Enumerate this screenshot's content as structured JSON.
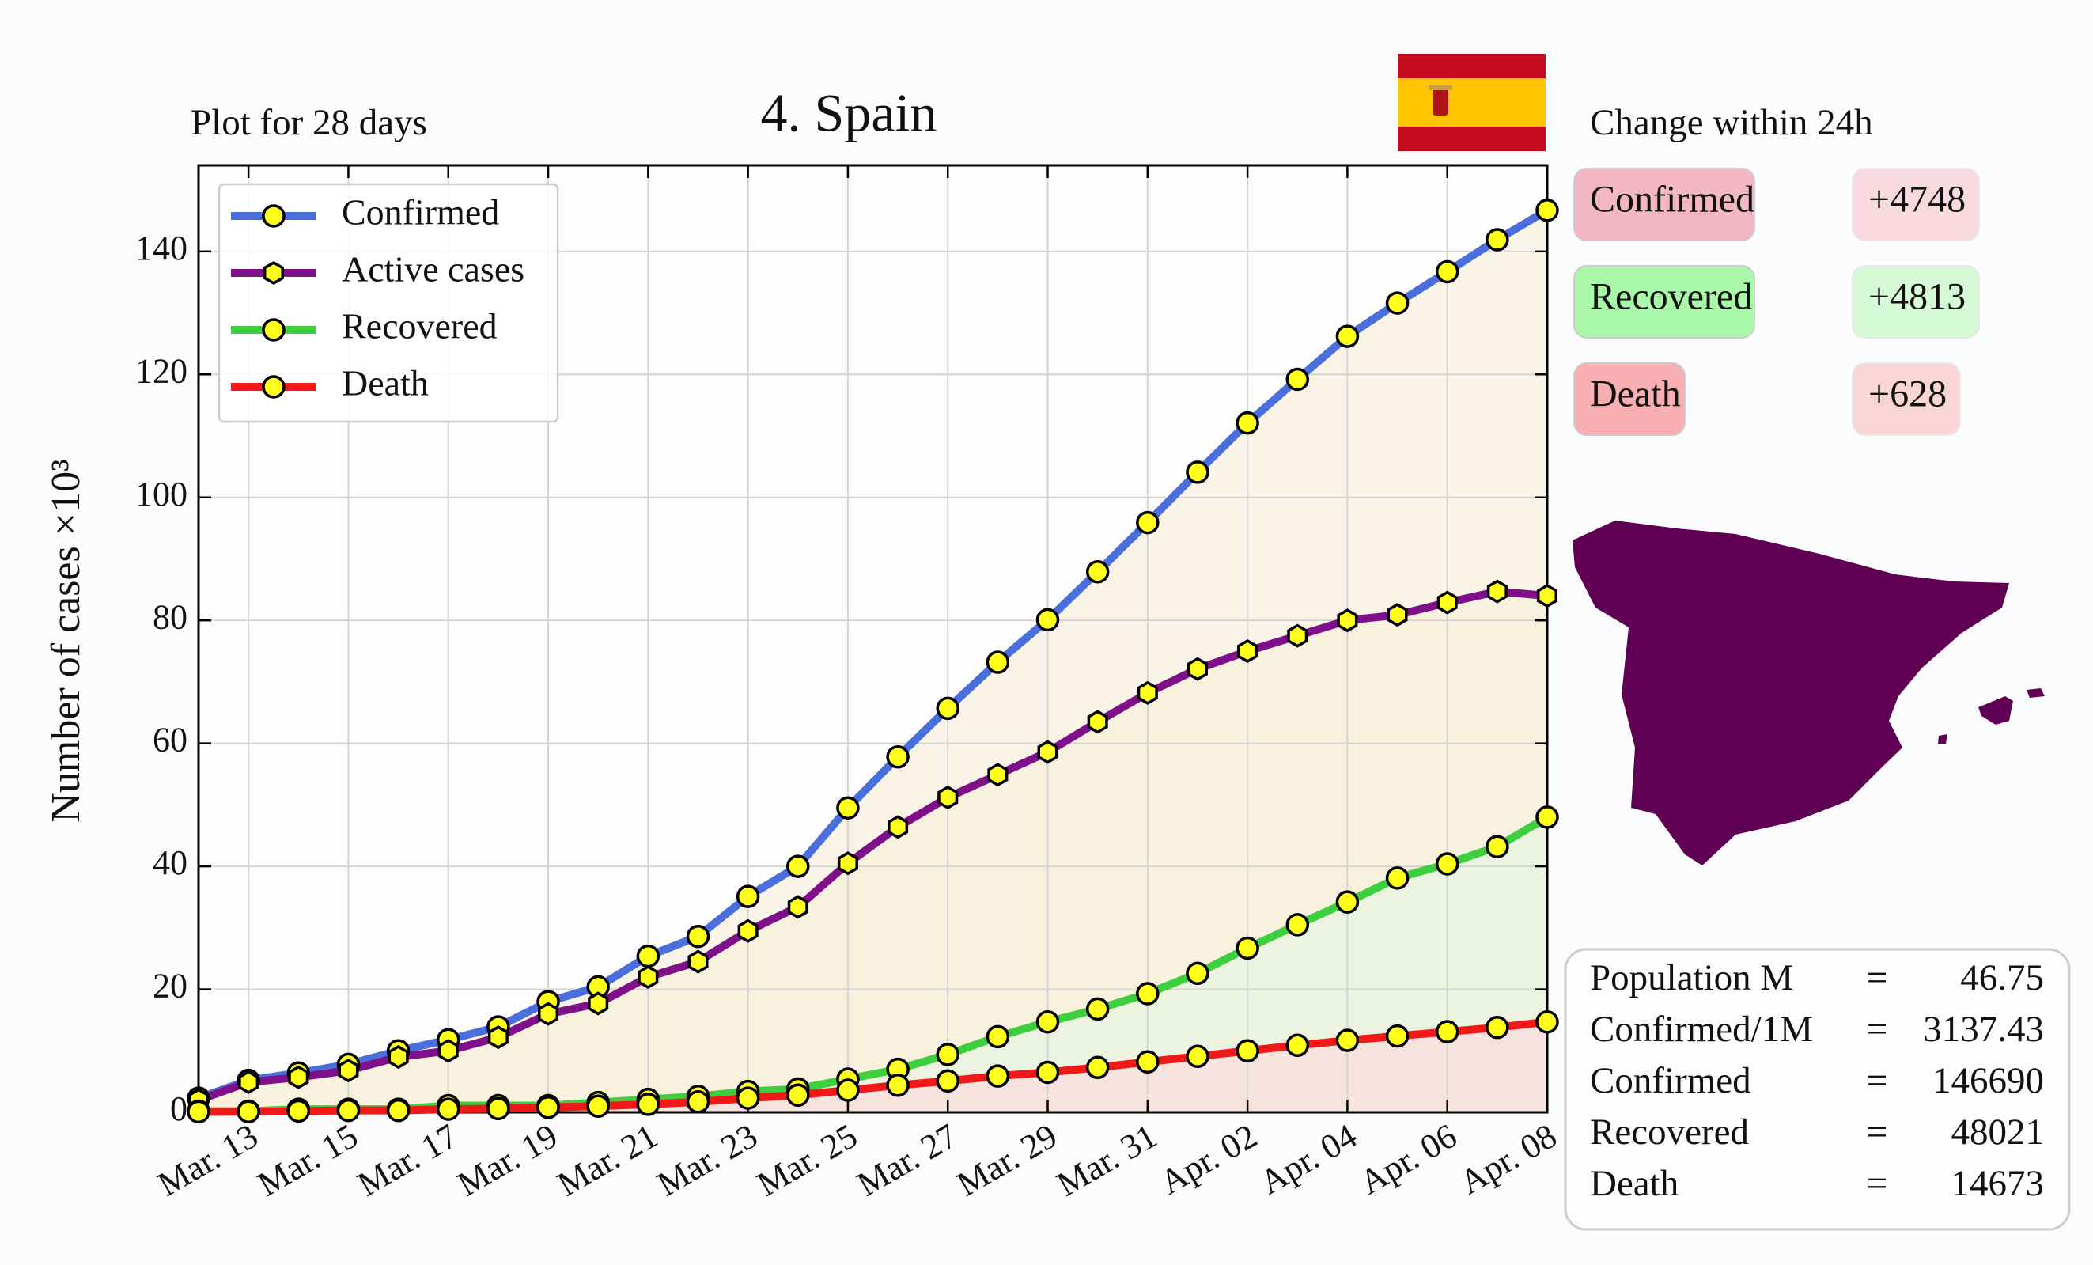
{
  "chart_data": {
    "type": "line",
    "title": "4. Spain",
    "subtitle": "Plot for 28 days",
    "y_label": "Number of cases ×10³",
    "categories": [
      null,
      "Mar. 13",
      null,
      "Mar. 15",
      null,
      "Mar. 17",
      null,
      "Mar. 19",
      null,
      "Mar. 21",
      null,
      "Mar. 23",
      null,
      "Mar. 25",
      null,
      "Mar. 27",
      null,
      "Mar. 29",
      null,
      "Mar. 31",
      null,
      "Apr. 02",
      null,
      "Apr. 04",
      null,
      "Apr. 06",
      null,
      "Apr. 08"
    ],
    "ylim": [
      0,
      154
    ],
    "yticks": [
      0,
      20,
      40,
      60,
      80,
      100,
      120,
      140
    ],
    "grid": true,
    "legend": "upper left",
    "series": [
      {
        "name": "Confirmed",
        "color": "#4a6fdc",
        "area_color": "#f7eed8",
        "marker": "circle",
        "values": [
          2.3,
          5.2,
          6.4,
          7.8,
          10.0,
          11.8,
          13.9,
          18.0,
          20.4,
          25.4,
          28.6,
          35.1,
          40.0,
          49.5,
          57.8,
          65.7,
          73.2,
          80.1,
          87.9,
          95.9,
          104.1,
          112.1,
          119.2,
          126.2,
          131.6,
          136.7,
          141.9,
          146.7
        ]
      },
      {
        "name": "Active cases",
        "color": "#800f8a",
        "area_color": "#f7eed8",
        "marker": "hexagon",
        "values": [
          2.0,
          4.9,
          5.7,
          6.8,
          9.0,
          10.0,
          12.2,
          16.0,
          17.7,
          22.0,
          24.5,
          29.5,
          33.4,
          40.5,
          46.4,
          51.2,
          54.9,
          58.6,
          63.5,
          68.2,
          72.1,
          75.0,
          77.5,
          80.0,
          80.9,
          82.9,
          84.7,
          84.0
        ]
      },
      {
        "name": "Recovered",
        "color": "#3ecf3e",
        "area_color": "#e6f5e3",
        "marker": "circle",
        "values": [
          0.2,
          0.2,
          0.5,
          0.5,
          0.5,
          1.1,
          1.1,
          1.1,
          1.6,
          2.1,
          2.6,
          3.4,
          3.8,
          5.4,
          7.0,
          9.4,
          12.3,
          14.7,
          16.8,
          19.3,
          22.6,
          26.7,
          30.5,
          34.2,
          38.1,
          40.4,
          43.2,
          48.0
        ]
      },
      {
        "name": "Death",
        "color": "#f01818",
        "area_color": "#fdd8dc",
        "marker": "circle",
        "values": [
          0.08,
          0.1,
          0.2,
          0.3,
          0.3,
          0.5,
          0.6,
          0.8,
          1.0,
          1.3,
          1.7,
          2.3,
          2.8,
          3.6,
          4.4,
          5.1,
          5.9,
          6.5,
          7.3,
          8.2,
          9.1,
          10.0,
          10.9,
          11.7,
          12.4,
          13.1,
          13.8,
          14.7
        ]
      }
    ]
  },
  "change": {
    "title": "Change within 24h",
    "items": [
      {
        "label": "Confirmed",
        "value": "+4748"
      },
      {
        "label": "Recovered",
        "value": "+4813"
      },
      {
        "label": "Death",
        "value": "+628"
      }
    ]
  },
  "stats": {
    "separator": "=",
    "rows": [
      {
        "label": "Population M",
        "value": 46.75
      },
      {
        "label": "Confirmed/1M",
        "value": 3137.43
      },
      {
        "label": "Confirmed",
        "value": 146690
      },
      {
        "label": "Recovered",
        "value": 48021
      },
      {
        "label": "Death",
        "value": 14673
      }
    ]
  }
}
